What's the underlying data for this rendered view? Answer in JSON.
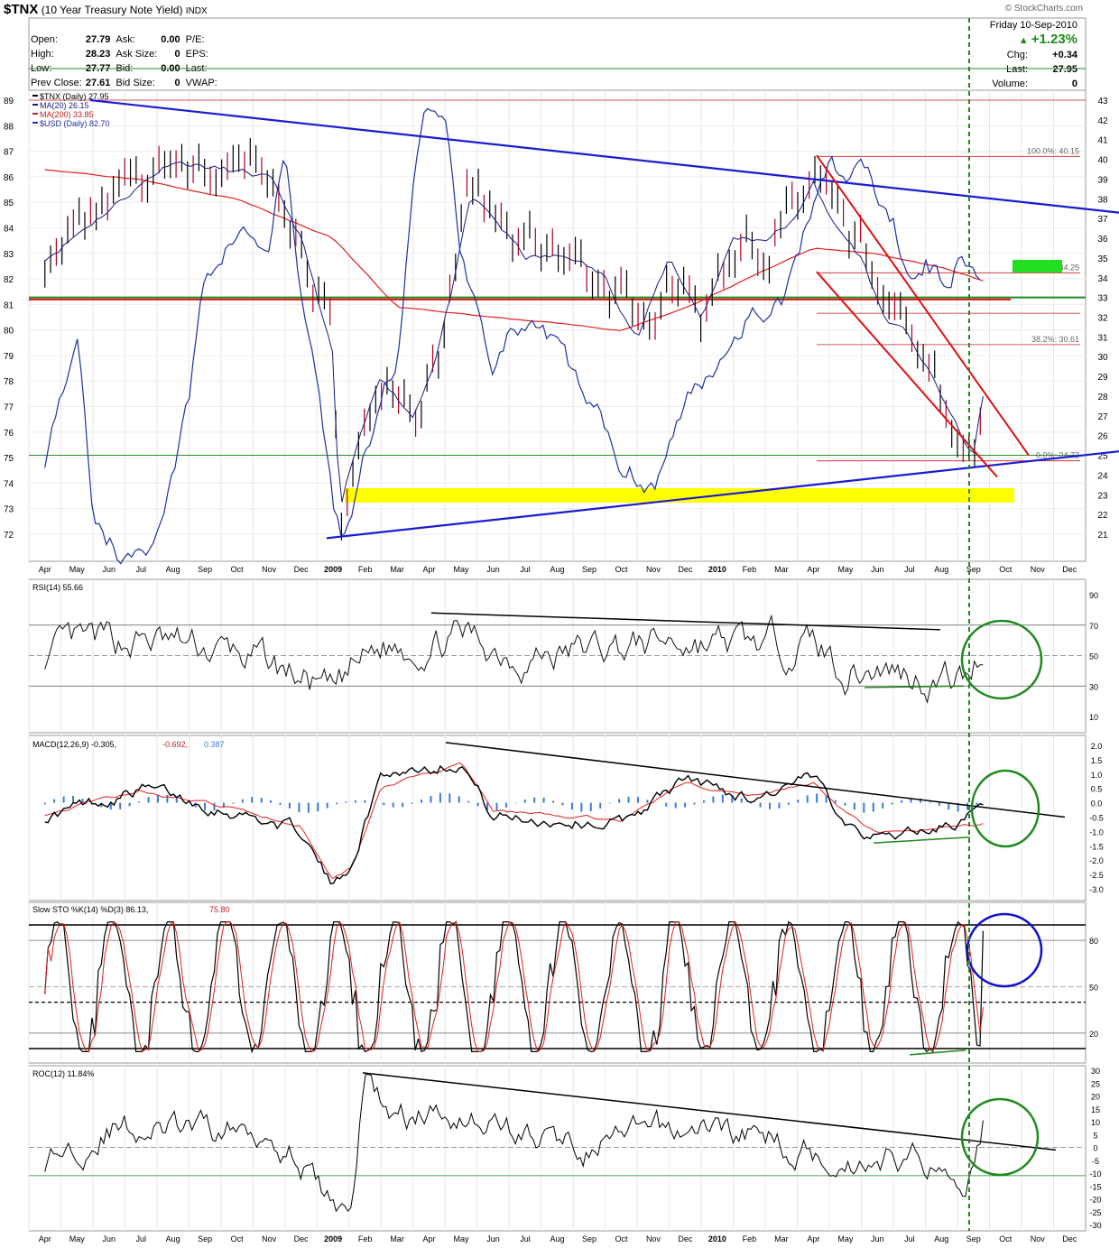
{
  "header": {
    "symbol": "$TNX",
    "name": "(10 Year Treasury Note Yield)",
    "exchange": "INDX",
    "credit": "© StockCharts.com",
    "date": "Friday 10-Sep-2010",
    "change_pct": "+1.23%",
    "chg_label": "Chg:",
    "chg_value": "+0.34",
    "last_label": "Last:",
    "last_value": "27.95",
    "volume_label": "Volume:",
    "volume_value": "0"
  },
  "quote": {
    "open_label": "Open:",
    "open": "27.79",
    "high_label": "High:",
    "high": "28.23",
    "low_label": "Low:",
    "low": "27.77",
    "prevclose_label": "Prev Close:",
    "prevclose": "27.61",
    "ask_label": "Ask:",
    "ask": "0.00",
    "asksize_label": "Ask Size:",
    "asksize": "0",
    "bid_label": "Bid:",
    "bid": "0.00",
    "bidsize_label": "Bid Size:",
    "bidsize": "0",
    "pe_label": "P/E:",
    "eps_label": "EPS:",
    "last_label": "Last:",
    "vwap_label": "VWAP:"
  },
  "chart_data": [
    {
      "type": "line",
      "panel": "price",
      "legend": [
        "$TNX (Daily) 27.95",
        "MA(20) 26.15",
        "MA(200) 33.85",
        "$USD (Daily) 82.70"
      ],
      "left_axis": [
        "89",
        "88",
        "87",
        "86",
        "85",
        "84",
        "83",
        "82",
        "81",
        "80",
        "79",
        "78",
        "77",
        "76",
        "75",
        "74",
        "73",
        "72"
      ],
      "right_axis": [
        "43",
        "42",
        "41",
        "40",
        "39",
        "38",
        "37",
        "36",
        "35",
        "34",
        "33",
        "32",
        "31",
        "30",
        "29",
        "28",
        "27",
        "26",
        "25",
        "24",
        "23",
        "22",
        "21"
      ],
      "x_labels": [
        "Apr",
        "May",
        "Jun",
        "Jul",
        "Aug",
        "Sep",
        "Oct",
        "Nov",
        "Dec",
        "2009",
        "Feb",
        "Mar",
        "Apr",
        "May",
        "Jun",
        "Jul",
        "Aug",
        "Sep",
        "Oct",
        "Nov",
        "Dec",
        "2010",
        "Feb",
        "Mar",
        "Apr",
        "May",
        "Jun",
        "Jul",
        "Aug",
        "Sep",
        "Oct",
        "Nov",
        "Dec"
      ],
      "fib_labels": [
        "100.0%: 40.15",
        "61.8%: 34.25",
        "38.2%: 30.61",
        "0.0%: 24.72"
      ],
      "tnx_anchors": [
        [
          0,
          35
        ],
        [
          4,
          40
        ],
        [
          7,
          39
        ],
        [
          8,
          36
        ],
        [
          9,
          30
        ],
        [
          9.2,
          22
        ],
        [
          9.5,
          24
        ],
        [
          10.5,
          29
        ],
        [
          11.5,
          27
        ],
        [
          12.2,
          30
        ],
        [
          12.8,
          34
        ],
        [
          13.3,
          38
        ],
        [
          14,
          37
        ],
        [
          15,
          35
        ],
        [
          16.5,
          35
        ],
        [
          17.5,
          34
        ],
        [
          18.5,
          31
        ],
        [
          19.5,
          35
        ],
        [
          20.5,
          32
        ],
        [
          21.5,
          36
        ],
        [
          22.5,
          36
        ],
        [
          23.5,
          37
        ],
        [
          24,
          39
        ],
        [
          24.5,
          37
        ],
        [
          25.5,
          35
        ],
        [
          26.2,
          32
        ],
        [
          27,
          31
        ],
        [
          28,
          28
        ],
        [
          28.6,
          26
        ],
        [
          29,
          25
        ],
        [
          29.3,
          28
        ]
      ],
      "usd_anchors": [
        [
          0,
          75
        ],
        [
          1,
          80
        ],
        [
          1.5,
          73
        ],
        [
          2.5,
          71
        ],
        [
          3.5,
          72
        ],
        [
          4.5,
          77
        ],
        [
          5,
          82
        ],
        [
          6,
          84
        ],
        [
          7,
          83
        ],
        [
          7.5,
          87
        ],
        [
          8,
          81
        ],
        [
          8.5,
          78
        ],
        [
          9,
          73
        ],
        [
          9.3,
          72
        ],
        [
          10,
          75
        ],
        [
          11,
          79
        ],
        [
          11.5,
          86
        ],
        [
          12,
          89
        ],
        [
          12.5,
          88
        ],
        [
          13,
          83
        ],
        [
          13.5,
          81
        ],
        [
          14,
          79
        ],
        [
          14.5,
          80
        ],
        [
          15,
          80
        ],
        [
          16,
          79
        ],
        [
          17,
          77
        ],
        [
          18,
          75
        ],
        [
          19,
          74
        ],
        [
          20,
          77
        ],
        [
          21,
          79
        ],
        [
          22,
          81
        ],
        [
          23,
          81
        ],
        [
          24,
          85
        ],
        [
          24.5,
          87
        ],
        [
          25,
          86
        ],
        [
          25.5,
          87
        ],
        [
          26,
          85
        ],
        [
          26.5,
          84
        ],
        [
          27,
          82
        ],
        [
          27.5,
          83
        ],
        [
          28,
          82
        ],
        [
          28.5,
          83
        ],
        [
          29.2,
          82.7
        ]
      ]
    },
    {
      "type": "line",
      "panel": "rsi",
      "legend": "RSI(14) 55.66",
      "axis": [
        "90",
        "70",
        "50",
        "30",
        "10"
      ]
    },
    {
      "type": "line",
      "panel": "macd",
      "legend_main": "MACD(12,26,9) -0.305,",
      "legend_signal": "-0.692,",
      "legend_hist": "0.387",
      "axis": [
        "2.0",
        "1.5",
        "1.0",
        "0.5",
        "0.0",
        "-0.5",
        "-1.0",
        "-1.5",
        "-2.0",
        "-2.5",
        "-3.0"
      ]
    },
    {
      "type": "line",
      "panel": "sto",
      "legend_main": "Slow STO %K(14) %D(3) 86.13,",
      "legend_d": "75.80",
      "axis": [
        "80",
        "50",
        "20"
      ]
    },
    {
      "type": "line",
      "panel": "roc",
      "legend": "ROC(12) 11.84%",
      "axis": [
        "30",
        "25",
        "20",
        "15",
        "10",
        "5",
        "0",
        "-5",
        "-10",
        "-15",
        "-20",
        "-25",
        "-30"
      ]
    }
  ]
}
